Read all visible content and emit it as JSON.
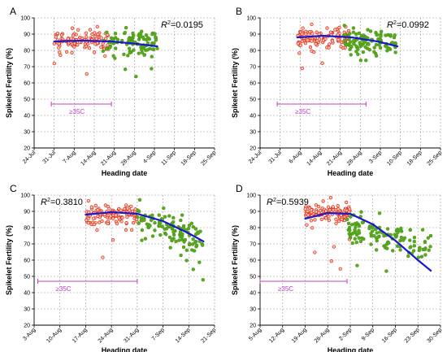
{
  "figure": {
    "colors": {
      "red_series": "#e02020",
      "red_fill": "#f6c6a0",
      "green_series": "#5aaa1e",
      "fit_line": "#1a1acc",
      "band": "#c040c0"
    }
  },
  "chart_data": [
    {
      "panel_label": "A",
      "type": "scatter",
      "xlabel": "Heading date",
      "ylabel": "Spikelet Fertility (%)",
      "ylim": [
        20,
        100
      ],
      "y_ticks": [
        20,
        30,
        40,
        50,
        60,
        70,
        80,
        90,
        100
      ],
      "x_ticks": [
        "24-Jul",
        "31-Jul",
        "7-Aug",
        "14-Aug",
        "21-Aug",
        "28-Aug",
        "4-Sep",
        "11-Sep",
        "18-Sep",
        "25-Sep"
      ],
      "xlim": [
        "2000-07-24",
        "2000-09-25"
      ],
      "grid": true,
      "r2_label": "=0.0195",
      "band_label": "≥35C",
      "band": [
        "2000-07-30",
        "2000-08-20"
      ],
      "band_y": 47,
      "fit_curve": [
        [
          "2000-07-31",
          85.5
        ],
        [
          "2000-08-10",
          86.0
        ],
        [
          "2000-08-20",
          85.5
        ],
        [
          "2000-08-28",
          84.2
        ],
        [
          "2000-09-05",
          82.5
        ]
      ],
      "series": [
        {
          "name": "",
          "color": "red",
          "x_range": [
            "2000-07-31",
            "2000-08-19"
          ],
          "y_mean": 86,
          "y_spread": 6,
          "count": 110
        },
        {
          "name": "",
          "color": "green",
          "x_range": [
            "2000-08-17",
            "2000-09-05"
          ],
          "y_mean": 85,
          "y_spread": 7,
          "count": 105
        }
      ]
    },
    {
      "panel_label": "B",
      "type": "scatter",
      "xlabel": "Heading date",
      "ylabel": "Spikelet Fertility (%)",
      "ylim": [
        20,
        100
      ],
      "y_ticks": [
        20,
        30,
        40,
        50,
        60,
        70,
        80,
        90,
        100
      ],
      "x_ticks": [
        "24-Jul",
        "31-Jul",
        "6-Aug",
        "14-Aug",
        "21-Aug",
        "28-Aug",
        "3-Sep",
        "10-Sep",
        "18-Sep",
        "25-Sep"
      ],
      "xlim": [
        "2000-07-24",
        "2000-09-25"
      ],
      "grid": true,
      "r2_label": "=0.0992",
      "band_label": "≥35C",
      "band": [
        "2000-07-30",
        "2000-08-30"
      ],
      "band_y": 47,
      "fit_curve": [
        [
          "2000-08-06",
          88.0
        ],
        [
          "2000-08-15",
          89.0
        ],
        [
          "2000-08-25",
          88.0
        ],
        [
          "2000-09-03",
          85.5
        ],
        [
          "2000-09-10",
          82.5
        ]
      ],
      "series": [
        {
          "name": "",
          "color": "red",
          "x_range": [
            "2000-08-06",
            "2000-08-24"
          ],
          "y_mean": 88,
          "y_spread": 6,
          "count": 115
        },
        {
          "name": "",
          "color": "green",
          "x_range": [
            "2000-08-22",
            "2000-09-10"
          ],
          "y_mean": 85,
          "y_spread": 8,
          "count": 105
        }
      ]
    },
    {
      "panel_label": "C",
      "type": "scatter",
      "xlabel": "Heading date",
      "ylabel": "Spikelet Fertility (%)",
      "ylim": [
        20,
        100
      ],
      "y_ticks": [
        20,
        30,
        40,
        50,
        60,
        70,
        80,
        90,
        100
      ],
      "x_ticks": [
        "3-Aug",
        "10-Aug",
        "17-Aug",
        "24-Aug",
        "31-Aug",
        "7-Sep",
        "14-Sep",
        "21-Sep"
      ],
      "xlim": [
        "2000-08-03",
        "2000-09-21"
      ],
      "grid": true,
      "r2_label": "=0.3810",
      "band_label": "≥35C",
      "band": [
        "2000-08-04",
        "2000-08-31"
      ],
      "band_y": 47,
      "fit_curve": [
        [
          "2000-08-17",
          88.0
        ],
        [
          "2000-08-24",
          89.5
        ],
        [
          "2000-08-31",
          88.5
        ],
        [
          "2000-09-07",
          84.0
        ],
        [
          "2000-09-14",
          76.5
        ],
        [
          "2000-09-18",
          71.5
        ]
      ],
      "series": [
        {
          "name": "",
          "color": "red",
          "x_range": [
            "2000-08-17",
            "2000-08-31"
          ],
          "y_mean": 88,
          "y_spread": 6,
          "count": 120
        },
        {
          "name": "",
          "color": "green",
          "x_range": [
            "2000-08-31",
            "2000-09-18"
          ],
          "y_mean": 79,
          "y_spread": 10,
          "count": 115
        }
      ]
    },
    {
      "panel_label": "D",
      "type": "scatter",
      "xlabel": "Heading date",
      "ylabel": "Spikelet Fertility (%)",
      "ylim": [
        20,
        100
      ],
      "y_ticks": [
        20,
        30,
        40,
        50,
        60,
        70,
        80,
        90,
        100
      ],
      "x_ticks": [
        "5-Aug",
        "12-Aug",
        "19-Aug",
        "26-Aug",
        "2-Sep",
        "9-Sep",
        "16-Sep",
        "23-Sep",
        "30-Sep"
      ],
      "xlim": [
        "2000-08-05",
        "2000-09-30"
      ],
      "grid": true,
      "r2_label": "=0.5939",
      "band_label": "≥35C",
      "band": [
        "2000-08-05",
        "2000-09-01"
      ],
      "band_y": 47,
      "fit_curve": [
        [
          "2000-08-19",
          85.5
        ],
        [
          "2000-08-26",
          89.0
        ],
        [
          "2000-09-02",
          88.5
        ],
        [
          "2000-09-09",
          82.0
        ],
        [
          "2000-09-16",
          72.0
        ],
        [
          "2000-09-23",
          60.0
        ],
        [
          "2000-09-27",
          53.5
        ]
      ],
      "series": [
        {
          "name": "",
          "color": "red",
          "x_range": [
            "2000-08-19",
            "2000-09-02"
          ],
          "y_mean": 89,
          "y_spread": 5,
          "count": 125
        },
        {
          "name": "",
          "color": "green",
          "x_range": [
            "2000-09-01",
            "2000-09-27"
          ],
          "y_mean": 74,
          "y_spread": 12,
          "count": 115
        }
      ]
    }
  ]
}
